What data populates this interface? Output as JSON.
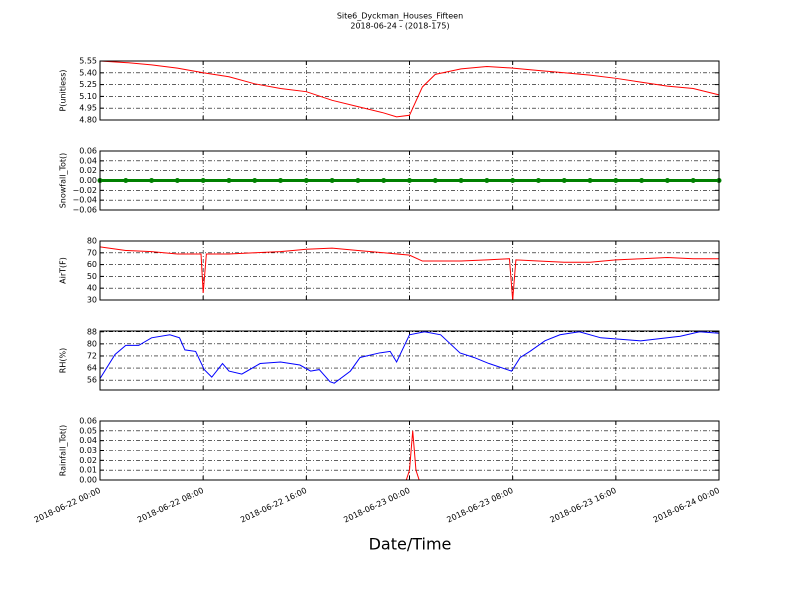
{
  "chart_data": [
    {
      "type": "line",
      "title": "Site6_Dyckman_Houses_Fifteen",
      "subtitle": "2018-06-24 - (2018-175)",
      "ylabel": "P(unitless)",
      "color": "#ff0000",
      "x": [
        "2018-06-22 00:00",
        "2018-06-22 02:00",
        "2018-06-22 04:00",
        "2018-06-22 06:00",
        "2018-06-22 08:00",
        "2018-06-22 10:00",
        "2018-06-22 12:00",
        "2018-06-22 14:00",
        "2018-06-22 16:00",
        "2018-06-22 18:00",
        "2018-06-22 20:00",
        "2018-06-22 22:00",
        "2018-06-22 23:00",
        "2018-06-23 00:00",
        "2018-06-23 01:00",
        "2018-06-23 02:00",
        "2018-06-23 04:00",
        "2018-06-23 06:00",
        "2018-06-23 08:00",
        "2018-06-23 10:00",
        "2018-06-23 12:00",
        "2018-06-23 14:00",
        "2018-06-23 16:00",
        "2018-06-23 18:00",
        "2018-06-23 20:00",
        "2018-06-23 22:00",
        "2018-06-24 00:00"
      ],
      "values": [
        5.55,
        5.53,
        5.5,
        5.46,
        5.4,
        5.35,
        5.26,
        5.2,
        5.16,
        5.05,
        4.97,
        4.89,
        4.84,
        4.86,
        5.22,
        5.38,
        5.45,
        5.48,
        5.46,
        5.43,
        5.4,
        5.37,
        5.33,
        5.28,
        5.23,
        5.2,
        5.12
      ],
      "xlim": [
        "2018-06-22 00:00",
        "2018-06-24 00:00"
      ],
      "ylim": [
        4.8,
        5.55
      ],
      "yticks": [
        {
          "value": 4.8,
          "label": "4.80"
        },
        {
          "value": 4.95,
          "label": "4.95"
        },
        {
          "value": 5.1,
          "label": "5.10"
        },
        {
          "value": 5.25,
          "label": "5.25"
        },
        {
          "value": 5.4,
          "label": "5.40"
        },
        {
          "value": 5.55,
          "label": "5.55"
        }
      ],
      "grid": true
    },
    {
      "type": "line",
      "ylabel": "Snowfall_Tot()",
      "color": "#008000",
      "markers": true,
      "x": [
        "2018-06-22 00:00",
        "2018-06-22 02:00",
        "2018-06-22 04:00",
        "2018-06-22 06:00",
        "2018-06-22 08:00",
        "2018-06-22 10:00",
        "2018-06-22 12:00",
        "2018-06-22 14:00",
        "2018-06-22 16:00",
        "2018-06-22 18:00",
        "2018-06-22 20:00",
        "2018-06-22 22:00",
        "2018-06-23 00:00",
        "2018-06-23 02:00",
        "2018-06-23 04:00",
        "2018-06-23 06:00",
        "2018-06-23 08:00",
        "2018-06-23 10:00",
        "2018-06-23 12:00",
        "2018-06-23 14:00",
        "2018-06-23 16:00",
        "2018-06-23 18:00",
        "2018-06-23 20:00",
        "2018-06-23 22:00",
        "2018-06-24 00:00"
      ],
      "values": [
        0,
        0,
        0,
        0,
        0,
        0,
        0,
        0,
        0,
        0,
        0,
        0,
        0,
        0,
        0,
        0,
        0,
        0,
        0,
        0,
        0,
        0,
        0,
        0,
        0
      ],
      "xlim": [
        "2018-06-22 00:00",
        "2018-06-24 00:00"
      ],
      "ylim": [
        -0.06,
        0.06
      ],
      "yticks": [
        {
          "value": -0.06,
          "label": "−0.06"
        },
        {
          "value": -0.04,
          "label": "−0.04"
        },
        {
          "value": -0.02,
          "label": "−0.02"
        },
        {
          "value": 0,
          "label": "0.00"
        },
        {
          "value": 0.02,
          "label": "0.02"
        },
        {
          "value": 0.04,
          "label": "0.04"
        },
        {
          "value": 0.06,
          "label": "0.06"
        }
      ],
      "grid": true
    },
    {
      "type": "line",
      "ylabel": "AirT(F)",
      "color": "#ff0000",
      "x": [
        "2018-06-22 00:00",
        "2018-06-22 02:00",
        "2018-06-22 04:00",
        "2018-06-22 06:00",
        "2018-06-22 07:50",
        "2018-06-22 08:00",
        "2018-06-22 08:15",
        "2018-06-22 10:00",
        "2018-06-22 12:00",
        "2018-06-22 14:00",
        "2018-06-22 16:00",
        "2018-06-22 18:00",
        "2018-06-22 20:00",
        "2018-06-22 22:00",
        "2018-06-23 00:00",
        "2018-06-23 01:00",
        "2018-06-23 04:00",
        "2018-06-23 06:00",
        "2018-06-23 07:45",
        "2018-06-23 08:00",
        "2018-06-23 08:15",
        "2018-06-23 10:00",
        "2018-06-23 12:00",
        "2018-06-23 14:00",
        "2018-06-23 16:00",
        "2018-06-23 18:00",
        "2018-06-23 20:00",
        "2018-06-23 22:00",
        "2018-06-24 00:00"
      ],
      "values": [
        75,
        72,
        71,
        69,
        69,
        36,
        69,
        69,
        70,
        71,
        73,
        74,
        72,
        70,
        68,
        63,
        63,
        64,
        65,
        30,
        64,
        63,
        62,
        62,
        64,
        65,
        66,
        65,
        65
      ],
      "xlim": [
        "2018-06-22 00:00",
        "2018-06-24 00:00"
      ],
      "ylim": [
        30,
        80
      ],
      "yticks": [
        30,
        40,
        50,
        60,
        70,
        80
      ],
      "grid": true
    },
    {
      "type": "line",
      "ylabel": "RH(%)",
      "color": "#0000ff",
      "x": [
        "2018-06-22 00:00",
        "2018-06-22 01:10",
        "2018-06-22 02:00",
        "2018-06-22 03:00",
        "2018-06-22 04:00",
        "2018-06-22 05:25",
        "2018-06-22 06:10",
        "2018-06-22 06:35",
        "2018-06-22 07:25",
        "2018-06-22 08:05",
        "2018-06-22 08:40",
        "2018-06-22 09:30",
        "2018-06-22 10:00",
        "2018-06-22 11:00",
        "2018-06-22 12:25",
        "2018-06-22 14:00",
        "2018-06-22 15:30",
        "2018-06-22 16:20",
        "2018-06-22 17:00",
        "2018-06-22 17:50",
        "2018-06-22 18:10",
        "2018-06-22 19:25",
        "2018-06-22 20:10",
        "2018-06-22 21:40",
        "2018-06-22 22:30",
        "2018-06-22 23:00",
        "2018-06-23 00:00",
        "2018-06-23 01:10",
        "2018-06-23 02:25",
        "2018-06-23 03:55",
        "2018-06-23 05:00",
        "2018-06-23 06:10",
        "2018-06-23 07:55",
        "2018-06-23 08:35",
        "2018-06-23 09:20",
        "2018-06-23 10:30",
        "2018-06-23 11:40",
        "2018-06-23 13:10",
        "2018-06-23 14:50",
        "2018-06-23 17:55",
        "2018-06-23 21:00",
        "2018-06-23 22:30",
        "2018-06-24 00:00"
      ],
      "values": [
        57,
        73,
        79,
        79,
        84,
        86,
        84,
        76,
        75,
        63,
        58,
        67,
        62,
        60,
        67,
        68,
        66,
        62,
        63,
        55,
        54,
        62,
        71,
        74,
        75,
        68,
        86,
        88,
        86,
        74,
        71,
        67,
        62,
        71,
        75,
        82,
        86,
        88,
        84,
        82,
        85,
        88,
        87
      ],
      "xlim": [
        "2018-06-22 00:00",
        "2018-06-24 00:00"
      ],
      "ylim": [
        49.5,
        88.5
      ],
      "yticks": [
        56,
        64,
        72,
        80,
        88
      ],
      "grid": true
    },
    {
      "type": "line",
      "ylabel": "Rainfall_Tot()",
      "xlabel": "Date/Time",
      "color": "#ff0000",
      "x": [
        "2018-06-22 00:00",
        "2018-06-22 23:45",
        "2018-06-23 00:00",
        "2018-06-23 00:15",
        "2018-06-23 00:30",
        "2018-06-23 00:45",
        "2018-06-24 00:00"
      ],
      "values": [
        0,
        0,
        0.01,
        0.05,
        0.01,
        0,
        0
      ],
      "xlim": [
        "2018-06-22 00:00",
        "2018-06-24 00:00"
      ],
      "ylim": [
        0,
        0.06
      ],
      "xticks": [
        "2018-06-22 00:00",
        "2018-06-22 08:00",
        "2018-06-22 16:00",
        "2018-06-23 00:00",
        "2018-06-23 08:00",
        "2018-06-23 16:00",
        "2018-06-24 00:00"
      ],
      "yticks": [
        {
          "value": 0,
          "label": "0.00"
        },
        {
          "value": 0.01,
          "label": "0.01"
        },
        {
          "value": 0.02,
          "label": "0.02"
        },
        {
          "value": 0.03,
          "label": "0.03"
        },
        {
          "value": 0.04,
          "label": "0.04"
        },
        {
          "value": 0.05,
          "label": "0.05"
        },
        {
          "value": 0.06,
          "label": "0.06"
        }
      ],
      "grid": true
    }
  ]
}
